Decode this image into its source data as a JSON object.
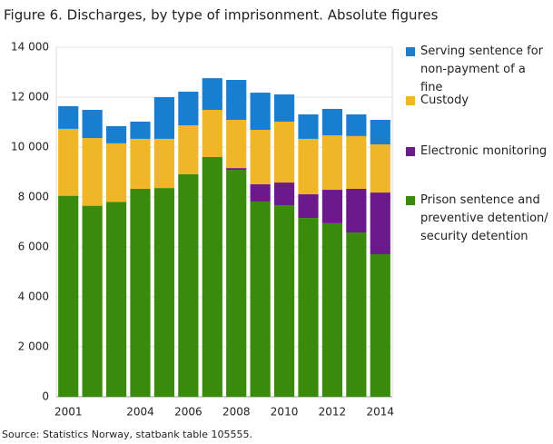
{
  "chart_data": {
    "type": "bar",
    "stacked": true,
    "title": "Figure 6. Discharges, by type of imprisonment. Absolute figures",
    "source": "Source: Statistics Norway, statbank table 105555.",
    "categories": [
      "2001",
      null,
      null,
      "2004",
      null,
      "2006",
      null,
      "2008",
      null,
      "2010",
      null,
      "2012",
      null,
      "2014"
    ],
    "series": [
      {
        "name": "Prison sentence and preventive detention/ security detention",
        "color": "#3a8a0e",
        "values": [
          8050,
          7650,
          7800,
          8330,
          8360,
          8910,
          9600,
          9090,
          7820,
          7670,
          7160,
          6950,
          6580,
          5710
        ]
      },
      {
        "name": "Electronic monitoring",
        "color": "#6b1a8c",
        "values": [
          0,
          0,
          0,
          0,
          0,
          0,
          0,
          70,
          690,
          910,
          950,
          1340,
          1750,
          2470
        ]
      },
      {
        "name": "Custody",
        "color": "#efb727",
        "values": [
          2680,
          2710,
          2350,
          2000,
          1970,
          1960,
          1890,
          1930,
          2180,
          2440,
          2220,
          2180,
          2110,
          1930
        ]
      },
      {
        "name": "Serving sentence for non-payment of a fine",
        "color": "#1a7ed0",
        "values": [
          910,
          1130,
          690,
          690,
          1670,
          1350,
          1270,
          1600,
          1490,
          1090,
          980,
          1060,
          870,
          980
        ]
      }
    ],
    "ylim": [
      0,
      14000
    ],
    "yticks": [
      0,
      {
        "value": 2000,
        "label": "2 000"
      },
      {
        "value": 4000,
        "label": "4 000"
      },
      {
        "value": 6000,
        "label": "6 000"
      },
      {
        "value": 8000,
        "label": "8 000"
      },
      {
        "value": 10000,
        "label": "10 000"
      },
      {
        "value": 12000,
        "label": "12 000"
      },
      {
        "value": 14000,
        "label": "14 000"
      }
    ],
    "grid": true
  }
}
